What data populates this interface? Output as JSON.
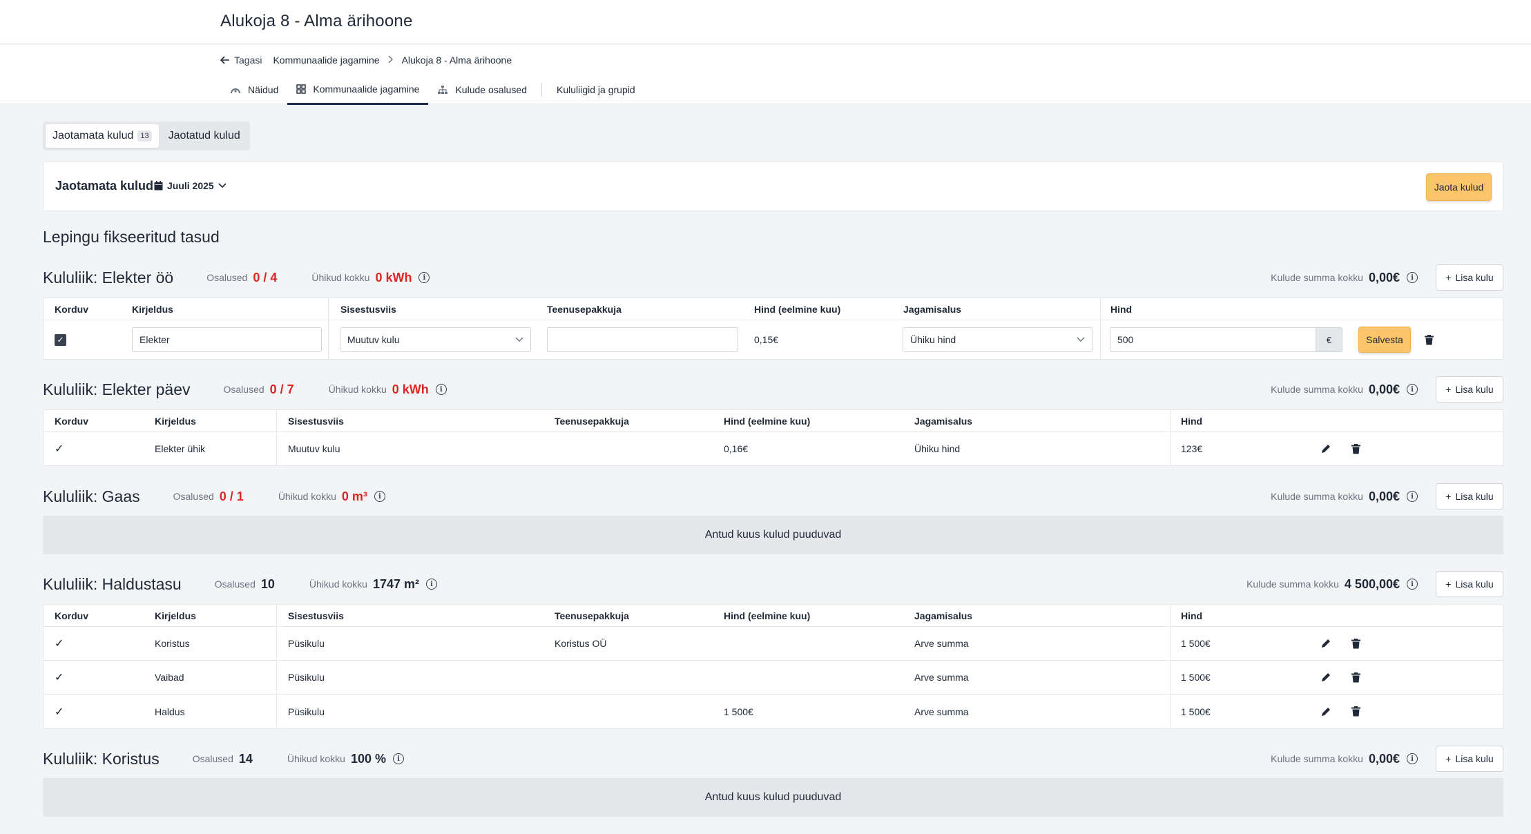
{
  "app": {
    "title": "Alukoja 8 - Alma ärihoone"
  },
  "breadcrumb": {
    "back": "Tagasi",
    "item1": "Kommunaalide jagamine",
    "item2": "Alukoja 8 - Alma ärihoone"
  },
  "nav_tabs": [
    {
      "label": "Näidud",
      "icon": "gauge-icon"
    },
    {
      "label": "Kommunaalide jagamine",
      "icon": "grid-icon",
      "active": true
    },
    {
      "label": "Kulude osalused",
      "icon": "hierarchy-icon"
    },
    {
      "label": "Kululiigid ja grupid"
    }
  ],
  "segment": {
    "unallocated": "Jaotamata kulud",
    "unallocated_count": "13",
    "allocated": "Jaotatud kulud"
  },
  "month_card": {
    "title": "Jaotamata kulud",
    "month": "Juuli 2025",
    "allocate_button": "Jaota kulud"
  },
  "section_title": "Lepingu fikseeritud tasud",
  "labels": {
    "participants": "Osalused",
    "units_total": "Ühikud kokku",
    "costs_total": "Kulude summa kokku",
    "add_cost": "Lisa kulu",
    "empty_month": "Antud kuus kulud puuduvad",
    "save": "Salvesta",
    "euro": "€"
  },
  "columns": {
    "korduv": "Korduv",
    "kirjeldus": "Kirjeldus",
    "sisestusviis": "Sisestusviis",
    "teenusepakkuja": "Teenusepakkuja",
    "hind_eelmine": "Hind (eelmine kuu)",
    "jagamisalus": "Jagamisalus",
    "hind": "Hind"
  },
  "groups": [
    {
      "name": "Kululiik: Elekter öö",
      "participants": "0 / 4",
      "units": "0 kWh",
      "total": "0,00€",
      "edit_row": {
        "description": "Elekter",
        "entry_mode": "Muutuv kulu",
        "provider": "",
        "prev_price": "0,15€",
        "basis": "Ühiku hind",
        "price": "500"
      }
    },
    {
      "name": "Kululiik: Elekter päev",
      "participants": "0 / 7",
      "units": "0 kWh",
      "total": "0,00€",
      "rows": [
        {
          "description": "Elekter ühik",
          "entry_mode": "Muutuv kulu",
          "provider": "",
          "prev_price": "0,16€",
          "basis": "Ühiku hind",
          "price": "123€"
        }
      ]
    },
    {
      "name": "Kululiik: Gaas",
      "participants": "0 / 1",
      "units": "0 m³",
      "total": "0,00€"
    },
    {
      "name": "Kululiik: Haldustasu",
      "participants": "10",
      "units": "1747 m²",
      "total": "4 500,00€",
      "rows": [
        {
          "description": "Koristus",
          "entry_mode": "Püsikulu",
          "provider": "Koristus OÜ",
          "prev_price": "",
          "basis": "Arve summa",
          "price": "1 500€"
        },
        {
          "description": "Vaibad",
          "entry_mode": "Püsikulu",
          "provider": "",
          "prev_price": "",
          "basis": "Arve summa",
          "price": "1 500€"
        },
        {
          "description": "Haldus",
          "entry_mode": "Püsikulu",
          "provider": "",
          "prev_price": "1 500€",
          "basis": "Arve summa",
          "price": "1 500€"
        }
      ]
    },
    {
      "name": "Kululiik: Koristus",
      "participants": "14",
      "units": "100 %",
      "total": "0,00€"
    }
  ]
}
